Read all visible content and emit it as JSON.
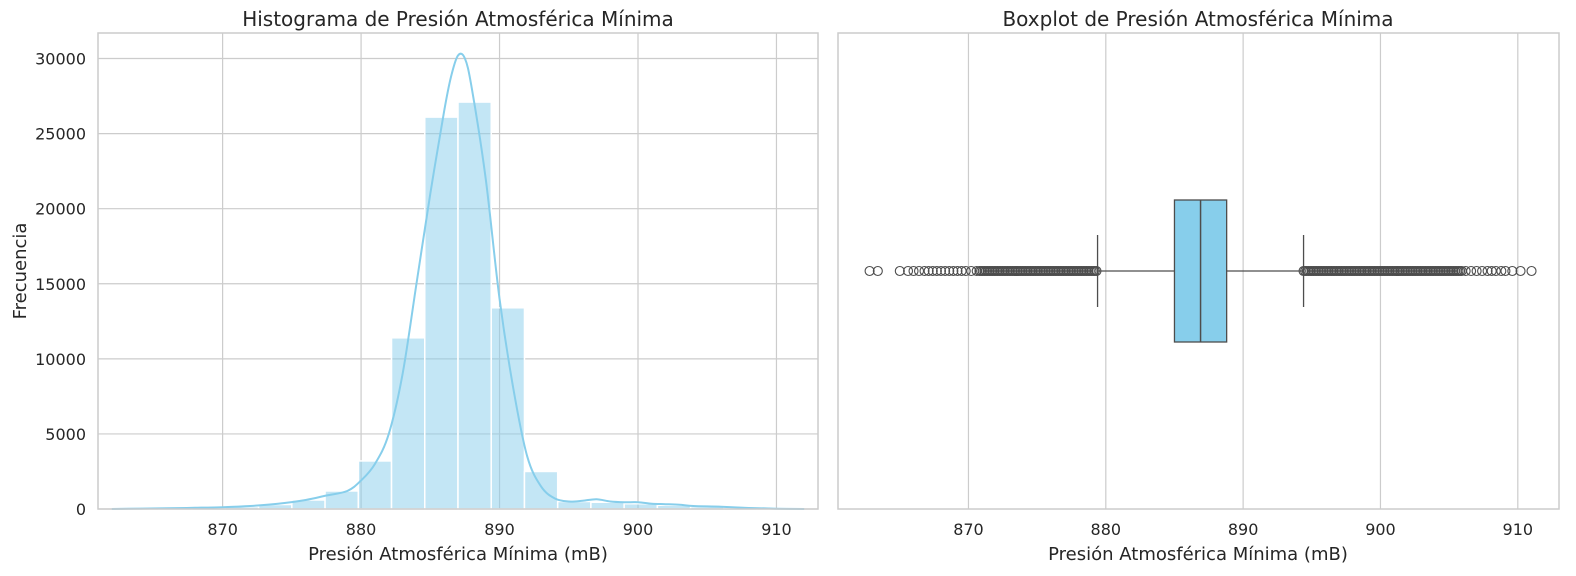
{
  "chart_data": [
    {
      "type": "bar",
      "title": "Histograma de Presión Atmosférica Mínima",
      "xlabel": "Presión Atmosférica Mínima (mB)",
      "ylabel": "Frecuencia",
      "xlim": [
        861,
        913
      ],
      "ylim": [
        0,
        31700
      ],
      "xticks": [
        870,
        880,
        890,
        900,
        910
      ],
      "yticks": [
        0,
        5000,
        10000,
        15000,
        20000,
        25000,
        30000
      ],
      "grid": true,
      "bar_color": "#87ceeb",
      "kde_color": "#87ceeb",
      "bins": [
        {
          "start": 863.0,
          "end": 865.4,
          "count": 20
        },
        {
          "start": 865.4,
          "end": 867.8,
          "count": 40
        },
        {
          "start": 867.8,
          "end": 870.2,
          "count": 80
        },
        {
          "start": 870.2,
          "end": 872.6,
          "count": 150
        },
        {
          "start": 872.6,
          "end": 875.0,
          "count": 300
        },
        {
          "start": 875.0,
          "end": 877.4,
          "count": 600
        },
        {
          "start": 877.4,
          "end": 879.8,
          "count": 1200
        },
        {
          "start": 879.8,
          "end": 882.2,
          "count": 3200
        },
        {
          "start": 882.2,
          "end": 884.6,
          "count": 11400
        },
        {
          "start": 884.6,
          "end": 887.0,
          "count": 26100
        },
        {
          "start": 887.0,
          "end": 889.4,
          "count": 27100
        },
        {
          "start": 889.4,
          "end": 891.8,
          "count": 13400
        },
        {
          "start": 891.8,
          "end": 894.2,
          "count": 2500
        },
        {
          "start": 894.2,
          "end": 896.6,
          "count": 500
        },
        {
          "start": 896.6,
          "end": 899.0,
          "count": 450
        },
        {
          "start": 899.0,
          "end": 901.4,
          "count": 350
        },
        {
          "start": 901.4,
          "end": 903.8,
          "count": 250
        },
        {
          "start": 903.8,
          "end": 906.2,
          "count": 150
        },
        {
          "start": 906.2,
          "end": 908.6,
          "count": 60
        },
        {
          "start": 908.6,
          "end": 911.0,
          "count": 20
        }
      ],
      "kde": {
        "x": [
          862,
          866,
          868,
          870,
          872,
          874,
          876,
          877.5,
          879,
          880,
          881,
          882,
          883,
          884,
          885,
          886,
          886.5,
          887,
          887.5,
          888,
          889,
          890,
          891,
          892,
          893,
          894,
          895,
          896,
          897,
          898,
          899,
          900,
          901,
          902,
          903,
          904,
          906,
          908,
          910,
          912
        ],
        "y": [
          0,
          50,
          80,
          120,
          200,
          350,
          600,
          900,
          1200,
          1900,
          3000,
          5000,
          9000,
          15000,
          21000,
          26500,
          28800,
          30200,
          30000,
          28000,
          22000,
          14000,
          8000,
          3500,
          1500,
          700,
          500,
          550,
          650,
          500,
          450,
          450,
          350,
          320,
          280,
          200,
          150,
          70,
          20,
          0
        ]
      }
    },
    {
      "type": "box",
      "title": "Boxplot de Presión Atmosférica Mínima",
      "xlabel": "Presión Atmosférica Mínima (mB)",
      "xlim": [
        860.5,
        913
      ],
      "xticks": [
        870,
        880,
        890,
        900,
        910
      ],
      "grid": true,
      "box_color": "#87ceeb",
      "line_color": "#4d4d4d",
      "q1": 885.0,
      "median": 886.9,
      "q3": 888.8,
      "whisker_low": 879.4,
      "whisker_high": 894.4,
      "outliers_sparse": [
        862.8,
        863.4,
        865.0,
        865.6,
        866.0,
        866.4,
        866.8,
        867.1,
        867.4,
        867.7,
        868.0,
        868.3,
        868.6,
        868.9,
        869.2,
        869.5,
        869.8,
        870.2,
        870.6,
        906.2,
        906.6,
        907.0,
        907.4,
        907.8,
        908.1,
        908.4,
        908.8,
        909.1,
        909.6,
        910.2,
        911.0
      ],
      "outlier_bands": [
        [
          870.8,
          879.4
        ],
        [
          894.4,
          906.0
        ]
      ]
    }
  ]
}
